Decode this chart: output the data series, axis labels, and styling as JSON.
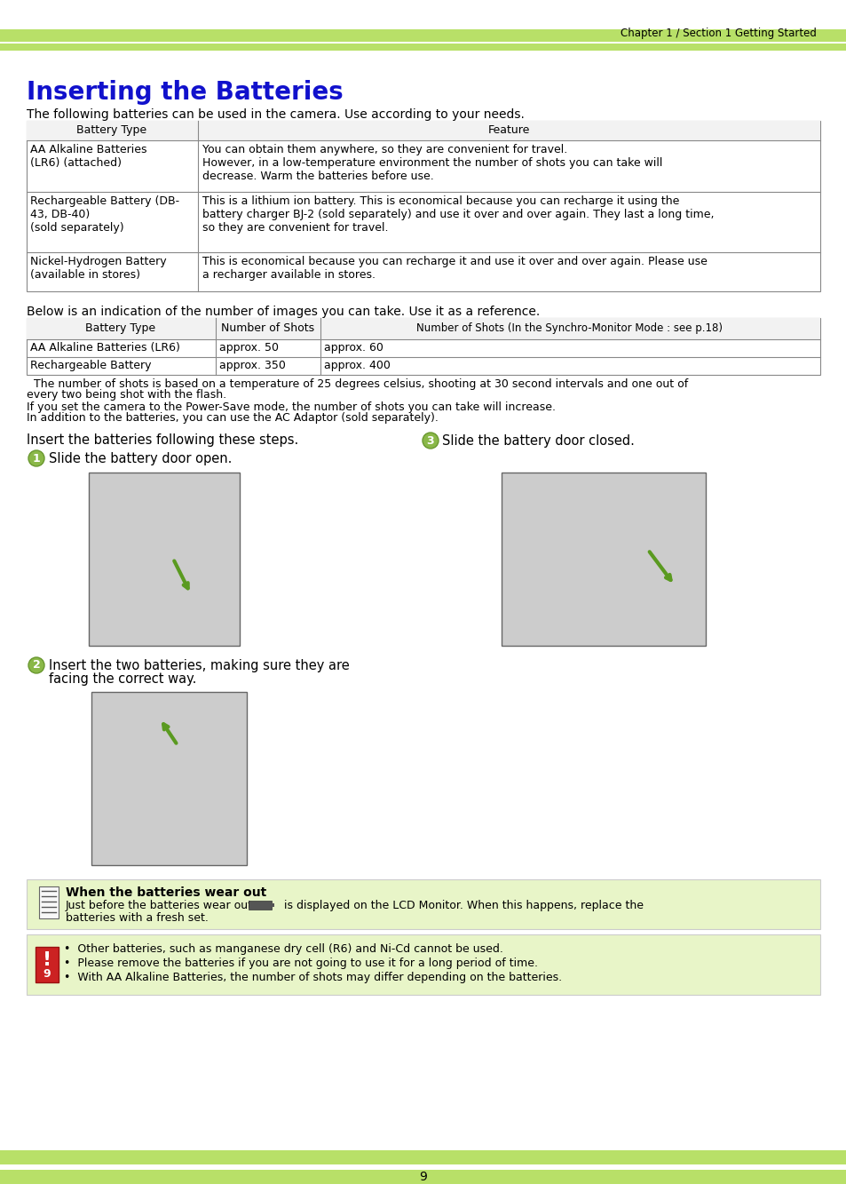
{
  "title": "Inserting the Batteries",
  "title_color": "#1111cc",
  "page_bg": "#ffffff",
  "light_green": "#b8e068",
  "note_bg": "#e8f5c8",
  "header_text": "Chapter 1 / Section 1 Getting Started",
  "page_number": "9",
  "intro_text1": "The following batteries can be used in the camera. Use according to your needs.",
  "t1_hdr": [
    "Battery Type",
    "Feature"
  ],
  "t1_r1c1": "AA Alkaline Batteries\n(LR6) (attached)",
  "t1_r1c2": "You can obtain them anywhere, so they are convenient for travel.\nHowever, in a low-temperature environment the number of shots you can take will\ndecrease. Warm the batteries before use.",
  "t1_r2c1": "Rechargeable Battery (DB-\n43, DB-40)\n(sold separately)",
  "t1_r2c2": "This is a lithium ion battery. This is economical because you can recharge it using the\nbattery charger BJ-2 (sold separately) and use it over and over again. They last a long time,\nso they are convenient for travel.",
  "t1_r3c1": "Nickel-Hydrogen Battery\n(available in stores)",
  "t1_r3c2": "This is economical because you can recharge it and use it over and over again. Please use\na recharger available in stores.",
  "intro_text2": "Below is an indication of the number of images you can take. Use it as a reference.",
  "t2_hdr": [
    "Battery Type",
    "Number of Shots",
    "Number of Shots (In the Synchro-Monitor Mode : see p.18)"
  ],
  "t2_r1": [
    "AA Alkaline Batteries (LR6)",
    "approx. 50",
    "approx. 60"
  ],
  "t2_r2": [
    "Rechargeable Battery",
    "approx. 350",
    "approx. 400"
  ],
  "note1a": "  The number of shots is based on a temperature of 25 degrees celsius, shooting at 30 second intervals and one out of",
  "note1b": "every two being shot with the flash.",
  "note2a": "If you set the camera to the Power-Save mode, the number of shots you can take will increase.",
  "note2b": "In addition to the batteries, you can use the AC Adaptor (sold separately).",
  "step_intro": "Insert the batteries following these steps.",
  "step1_text": "Slide the battery door open.",
  "step2_line1": "Insert the two batteries, making sure they are",
  "step2_line2": "facing the correct way.",
  "step3_text": "Slide the battery door closed.",
  "warn_title": "When the batteries wear out",
  "warn_p1": "Just before the batteries wear out,",
  "warn_p2": "is displayed on the LCD Monitor. When this happens, replace the",
  "warn_p3": "batteries with a fresh set.",
  "bullets": [
    "Other batteries, such as manganese dry cell (R6) and Ni-Cd cannot be used.",
    "Please remove the batteries if you are not going to use it for a long period of time.",
    "With AA Alkaline Batteries, the number of shots may differ depending on the batteries."
  ],
  "step_circle_color": "#8ab848",
  "step_circle_edge": "#6a9830",
  "dark_gray": "#555555",
  "table_border": "#888888"
}
